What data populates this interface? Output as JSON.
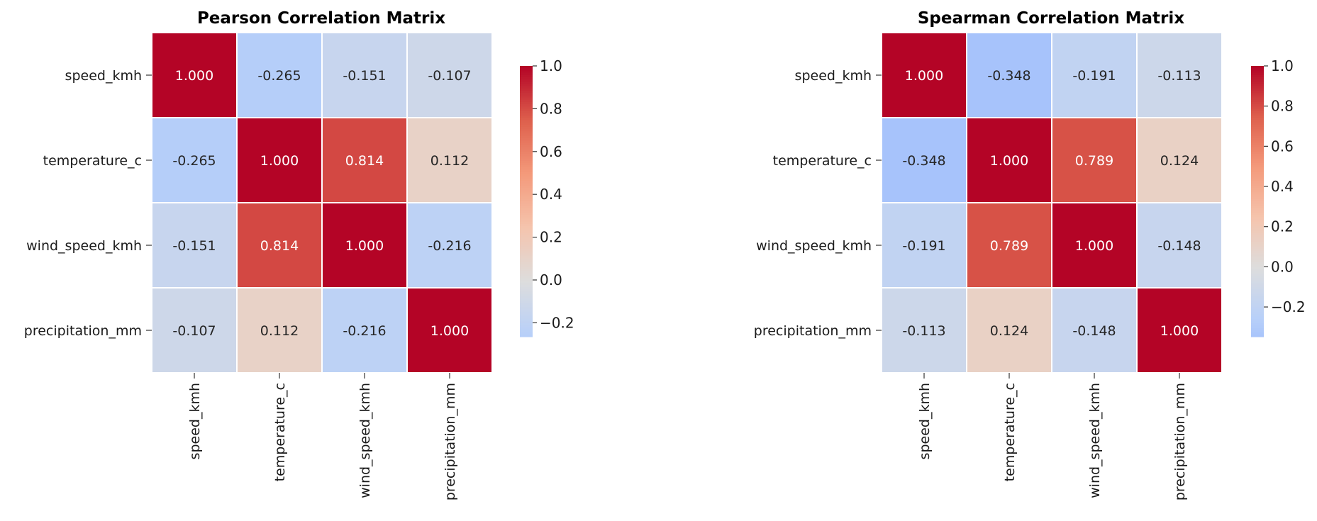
{
  "chart_data": [
    {
      "type": "heatmap",
      "title": "Pearson Correlation Matrix",
      "variables": [
        "speed_kmh",
        "temperature_c",
        "wind_speed_kmh",
        "precipitation_mm"
      ],
      "matrix": [
        [
          1.0,
          -0.265,
          -0.151,
          -0.107
        ],
        [
          -0.265,
          1.0,
          0.814,
          0.112
        ],
        [
          -0.151,
          0.814,
          1.0,
          -0.216
        ],
        [
          -0.107,
          0.112,
          -0.216,
          1.0
        ]
      ],
      "value_format": "3 decimals",
      "colormap": "coolwarm",
      "color_center": 0,
      "color_limits": [
        -0.265,
        1.0
      ],
      "colorbar_ticks": [
        -0.2,
        0.0,
        0.2,
        0.4,
        0.6,
        0.8,
        1.0
      ],
      "colorbar_tick_labels": [
        "−0.2",
        "0.0",
        "0.2",
        "0.4",
        "0.6",
        "0.8",
        "1.0"
      ]
    },
    {
      "type": "heatmap",
      "title": "Spearman Correlation Matrix",
      "variables": [
        "speed_kmh",
        "temperature_c",
        "wind_speed_kmh",
        "precipitation_mm"
      ],
      "matrix": [
        [
          1.0,
          -0.348,
          -0.191,
          -0.113
        ],
        [
          -0.348,
          1.0,
          0.789,
          0.124
        ],
        [
          -0.191,
          0.789,
          1.0,
          -0.148
        ],
        [
          -0.113,
          0.124,
          -0.148,
          1.0
        ]
      ],
      "value_format": "3 decimals",
      "colormap": "coolwarm",
      "color_center": 0,
      "color_limits": [
        -0.348,
        1.0
      ],
      "colorbar_ticks": [
        -0.2,
        0.0,
        0.2,
        0.4,
        0.6,
        0.8,
        1.0
      ],
      "colorbar_tick_labels": [
        "−0.2",
        "0.0",
        "0.2",
        "0.4",
        "0.6",
        "0.8",
        "1.0"
      ]
    }
  ],
  "colors": {
    "coolwarm_low": "#3b4cc0",
    "coolwarm_mid": "#dddddd",
    "coolwarm_high": "#b40426",
    "grid_line": "#ffffff"
  }
}
